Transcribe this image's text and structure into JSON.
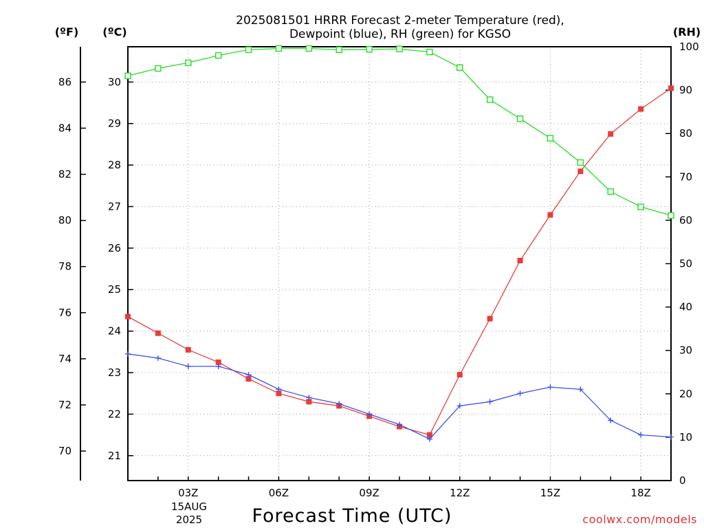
{
  "chart_data": {
    "type": "line",
    "title": [
      "2025081501 HRRR Forecast 2-meter Temperature (red),",
      "Dewpoint (blue), RH (green) for KGSO"
    ],
    "xlabel": "Forecast Time (UTC)",
    "credit": "coolwx.com/models",
    "date_label": [
      "15AUG",
      "2025"
    ],
    "unit_labels": {
      "fahrenheit": "(ºF)",
      "celsius": "(ºC)",
      "rh": "(RH)"
    },
    "x": [
      "01Z",
      "02Z",
      "03Z",
      "04Z",
      "05Z",
      "06Z",
      "07Z",
      "08Z",
      "09Z",
      "10Z",
      "11Z",
      "12Z",
      "13Z",
      "14Z",
      "15Z",
      "16Z",
      "17Z",
      "18Z",
      "19Z"
    ],
    "x_tick_labels": [
      "03Z",
      "06Z",
      "09Z",
      "12Z",
      "15Z",
      "18Z"
    ],
    "y_celsius_ticks": [
      "21",
      "22",
      "23",
      "24",
      "25",
      "26",
      "27",
      "28",
      "29",
      "30"
    ],
    "y_fahrenheit_ticks": [
      "70",
      "72",
      "74",
      "76",
      "78",
      "80",
      "82",
      "84",
      "86"
    ],
    "y_rh_ticks": [
      "0",
      "10",
      "20",
      "30",
      "40",
      "50",
      "60",
      "70",
      "80",
      "90",
      "100"
    ],
    "ylim_celsius": [
      20.4,
      30.85
    ],
    "ylim_rh": [
      0,
      100
    ],
    "grid": true,
    "series": [
      {
        "name": "Temperature (red)",
        "color": "#e83c3c",
        "axis": "celsius",
        "marker": "filled-square",
        "values": [
          24.35,
          23.95,
          23.55,
          23.25,
          22.85,
          22.5,
          22.3,
          22.2,
          21.95,
          21.7,
          21.5,
          22.95,
          24.3,
          25.7,
          26.8,
          27.85,
          28.75,
          29.35,
          29.85
        ]
      },
      {
        "name": "Dewpoint (blue)",
        "color": "#3c50e8",
        "axis": "celsius",
        "marker": "plus",
        "values": [
          23.45,
          23.35,
          23.15,
          23.15,
          22.95,
          22.6,
          22.4,
          22.25,
          22.0,
          21.75,
          21.4,
          22.2,
          22.3,
          22.5,
          22.65,
          22.6,
          21.85,
          21.5,
          21.45
        ]
      },
      {
        "name": "RH (green)",
        "color": "#22dd22",
        "axis": "rh",
        "marker": "open-square",
        "values": [
          93.3,
          95.0,
          96.3,
          98.0,
          99.3,
          99.6,
          99.6,
          99.3,
          99.4,
          99.5,
          98.8,
          95.2,
          87.8,
          83.4,
          78.9,
          73.3,
          66.6,
          63.1,
          61.1
        ]
      }
    ]
  }
}
